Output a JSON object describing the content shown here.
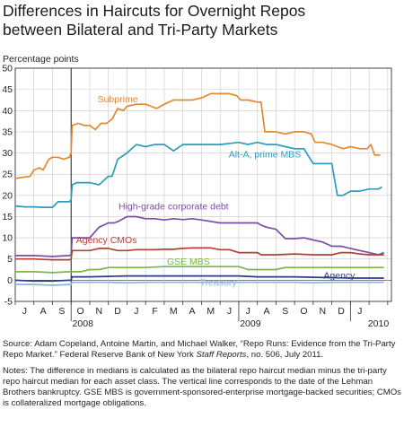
{
  "title_line1": "Differences in Haircuts for Overnight Repos",
  "title_line2": "between Bilateral and Tri-Party Markets",
  "source_pre": "Source: Adam Copeland, Antoine Martin, and Michael Walker, “Repo Runs: Evidence from the Tri-Party Repo Market.” Federal Reserve Bank of New York ",
  "source_italic": "Staff Reports",
  "source_post": ", no. 506, July 2011.",
  "notes": "Notes: The difference in medians is calculated as the bilateral repo haircut median minus the tri-party repo haircut median for each asset class. The vertical line corresponds to the date of the Lehman Brothers bankruptcy. GSE MBS is government-sponsored-enterprise mortgage-backed securities; CMOs is collateralized mortgage obligations.",
  "chart_data": {
    "type": "line",
    "ylabel": "Percentage points",
    "ylim": [
      -5,
      50
    ],
    "yticks": [
      -5,
      0,
      5,
      10,
      15,
      20,
      25,
      30,
      35,
      40,
      45,
      50
    ],
    "xlim": [
      0,
      20.2
    ],
    "month_ticks": [
      "J",
      "A",
      "S",
      "O",
      "N",
      "D",
      "J",
      "F",
      "M",
      "A",
      "M",
      "J",
      "J",
      "A",
      "S",
      "O",
      "N",
      "D",
      "J"
    ],
    "year_labels": [
      {
        "label": "2008",
        "x": 3.0
      },
      {
        "label": "2009",
        "x": 12.0
      },
      {
        "label": "2010",
        "x": 19.5
      }
    ],
    "vline_x": 3.0,
    "grid": true,
    "series": [
      {
        "name": "Subprime",
        "color": "#e08a2e",
        "label_pos": [
          5.5,
          42
        ],
        "x": [
          0,
          0.8,
          1.0,
          1.3,
          1.5,
          1.8,
          2.0,
          2.3,
          2.6,
          2.9,
          3.0,
          3.05,
          3.4,
          3.7,
          4.0,
          4.3,
          4.6,
          4.9,
          5.2,
          5.5,
          5.8,
          6.0,
          6.5,
          7.0,
          7.3,
          7.6,
          8.0,
          8.5,
          9.0,
          9.5,
          10.0,
          10.5,
          11.0,
          11.5,
          11.9,
          12.1,
          12.5,
          13.0,
          13.2,
          13.4,
          14.0,
          14.5,
          15.0,
          15.5,
          15.9,
          16.1,
          16.5,
          17.0,
          17.3,
          17.6,
          18.0,
          18.5,
          18.9,
          19.1,
          19.3,
          19.6
        ],
        "y": [
          24,
          24.5,
          26,
          26.5,
          26,
          28.5,
          29,
          29,
          28.5,
          29,
          30,
          36.5,
          37,
          36.5,
          36.5,
          35.5,
          37,
          37,
          38,
          40.5,
          40,
          41,
          41.5,
          41.5,
          41,
          40.5,
          41.5,
          42.5,
          42.5,
          42.5,
          43,
          44,
          44,
          44,
          43.5,
          42.5,
          42.5,
          42,
          42,
          35,
          35,
          34.5,
          35,
          35,
          34.5,
          32.5,
          32.5,
          32,
          31.5,
          31,
          31.5,
          31,
          31,
          32,
          29.5,
          29.5
        ]
      },
      {
        "name": "Alt-A, prime MBS",
        "color": "#2a9dbf",
        "label_pos": [
          13.4,
          29
        ],
        "x": [
          0,
          0.5,
          1.0,
          1.5,
          2.0,
          2.3,
          2.6,
          2.9,
          3.0,
          3.05,
          3.3,
          3.6,
          4.0,
          4.5,
          5.0,
          5.2,
          5.5,
          6.0,
          6.5,
          7.0,
          7.5,
          8.0,
          8.5,
          9.0,
          9.5,
          10.0,
          11.0,
          12.0,
          12.5,
          13.0,
          13.5,
          14.0,
          14.5,
          15.0,
          15.5,
          16.0,
          16.3,
          16.6,
          17.0,
          17.3,
          17.6,
          18.0,
          18.5,
          19.0,
          19.5,
          19.7
        ],
        "y": [
          17.5,
          17.3,
          17.3,
          17.2,
          17.2,
          18.5,
          18.5,
          18.5,
          19,
          22.5,
          23,
          23,
          23,
          22.5,
          24.5,
          24.5,
          28.5,
          30,
          32,
          31.5,
          32,
          32,
          30.5,
          32,
          32,
          32,
          32,
          32.5,
          32,
          32.5,
          32,
          32,
          31.5,
          31,
          31,
          27.5,
          27.5,
          27.5,
          27.5,
          20,
          20,
          21,
          21,
          21.5,
          21.5,
          22
        ]
      },
      {
        "name": "High-grade corporate debt",
        "color": "#7a4fa3",
        "label_pos": [
          8.5,
          16.7
        ],
        "x": [
          0,
          1.0,
          2.0,
          2.9,
          3.0,
          3.05,
          3.5,
          4.0,
          4.5,
          5.0,
          5.3,
          5.5,
          6.0,
          6.5,
          7.0,
          7.5,
          8.0,
          8.5,
          9.0,
          9.5,
          10.0,
          11.0,
          12.0,
          12.5,
          13.0,
          13.2,
          13.5,
          14.0,
          14.5,
          15.0,
          15.5,
          16.0,
          16.5,
          17.0,
          17.5,
          18.0,
          18.5,
          19.0,
          19.5,
          19.8
        ],
        "y": [
          5.8,
          5.8,
          5.6,
          5.8,
          6,
          10,
          10,
          10,
          12.5,
          13.5,
          13.5,
          13.8,
          15,
          15,
          14.5,
          14.5,
          14.2,
          14.5,
          14.3,
          14.5,
          14.2,
          13.5,
          13.5,
          13.5,
          13.5,
          13,
          12.5,
          12,
          9.8,
          9.8,
          10,
          9.5,
          9,
          8,
          8,
          7.5,
          7,
          6.5,
          6,
          6.5
        ]
      },
      {
        "name": "Agency CMOs",
        "color": "#b83e33",
        "label_pos": [
          4.9,
          8.8
        ],
        "x": [
          0,
          1.0,
          2.0,
          2.9,
          3.0,
          3.05,
          3.5,
          4.0,
          4.5,
          5.0,
          5.5,
          6.0,
          6.5,
          7.0,
          7.5,
          8.0,
          8.5,
          9.0,
          9.5,
          10.0,
          10.5,
          11.0,
          11.5,
          12.0,
          12.5,
          13.0,
          13.2,
          13.5,
          14.0,
          15.0,
          16.0,
          17.0,
          17.5,
          18.0,
          18.5,
          19.0,
          19.5,
          19.8
        ],
        "y": [
          5,
          5,
          4.8,
          4.8,
          5,
          7,
          7,
          7,
          7.5,
          7.5,
          7,
          7,
          7.2,
          7.2,
          7.2,
          7.3,
          7.3,
          7.5,
          7.6,
          7.6,
          7.6,
          7.2,
          7.2,
          6.5,
          6.5,
          6.5,
          6,
          6,
          6,
          6.2,
          6,
          6,
          6.5,
          6.5,
          6.2,
          6,
          6,
          6
        ]
      },
      {
        "name": "GSE MBS",
        "color": "#7ab648",
        "label_pos": [
          9.3,
          3.7
        ],
        "x": [
          0,
          1.0,
          2.0,
          2.9,
          3.0,
          3.05,
          3.5,
          4.0,
          4.5,
          5.0,
          6.0,
          7.0,
          8.0,
          9.0,
          10.0,
          11.0,
          12.0,
          12.5,
          13.0,
          13.5,
          14.0,
          14.5,
          15.0,
          16.0,
          17.0,
          18.0,
          19.0,
          19.8
        ],
        "y": [
          2,
          2,
          1.8,
          2,
          2,
          2,
          2,
          2.5,
          2.5,
          3,
          3,
          3,
          3.2,
          3.2,
          3.2,
          3.2,
          3.2,
          2.5,
          2.5,
          2.5,
          2.5,
          3,
          3,
          3,
          3,
          3,
          3,
          3
        ]
      },
      {
        "name": "Agency",
        "color": "#2d3b8c",
        "label_pos": [
          17.4,
          0.4
        ],
        "x": [
          0,
          1.0,
          2.0,
          2.9,
          3.0,
          3.05,
          4.0,
          5.0,
          6.0,
          7.0,
          8.0,
          9.0,
          10.0,
          11.0,
          12.0,
          13.0,
          14.0,
          15.0,
          16.0,
          17.0,
          18.0,
          19.0,
          19.8
        ],
        "y": [
          0,
          -0.2,
          -0.2,
          0,
          0,
          0.8,
          0.8,
          0.9,
          1,
          1,
          1,
          1,
          1,
          1,
          1,
          0.8,
          0.8,
          0.8,
          0.7,
          0.6,
          0.5,
          0.5,
          0.5
        ]
      },
      {
        "name": "Treasury",
        "color": "#8ab4d9",
        "label_pos": [
          10.9,
          -1.3
        ],
        "x": [
          0,
          1.0,
          2.0,
          2.9,
          3.0,
          3.05,
          4.0,
          5.0,
          6.0,
          7.0,
          8.0,
          9.0,
          10.0,
          11.0,
          12.0,
          13.0,
          14.0,
          15.0,
          16.0,
          17.0,
          18.0,
          19.0,
          19.8
        ],
        "y": [
          -1,
          -1,
          -1.2,
          -1,
          -1,
          -0.5,
          -0.5,
          -0.5,
          -0.6,
          -0.5,
          -0.5,
          -0.5,
          -0.5,
          -0.5,
          -0.5,
          -0.5,
          -0.5,
          -0.5,
          -0.6,
          -0.5,
          -0.5,
          -0.5,
          -0.5
        ]
      }
    ]
  }
}
